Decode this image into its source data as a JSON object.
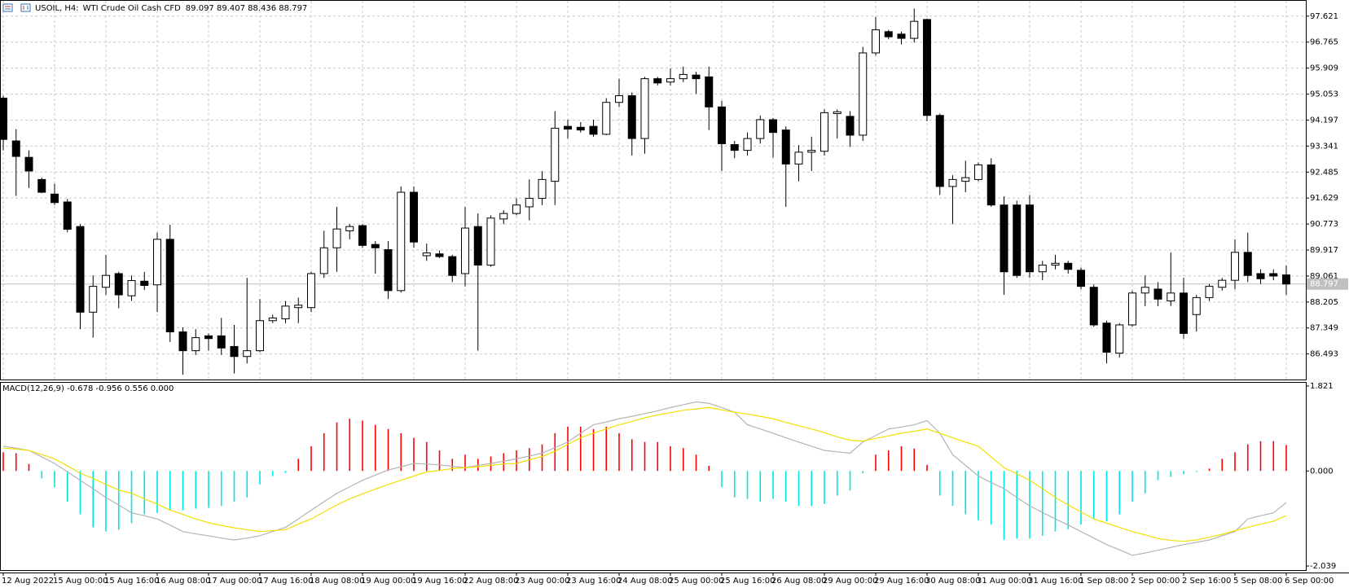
{
  "header": {
    "symbol": "USOIL, H4:",
    "description": "WTI Crude Oil Cash CFD",
    "ohlc": "89.097 89.407 88.436 88.797"
  },
  "chart_data": [
    {
      "type": "candlestick",
      "categories": [
        "12 Aug 2022",
        null,
        null,
        null,
        "15 Aug 00:00",
        null,
        null,
        null,
        "15 Aug 16:00",
        null,
        null,
        null,
        "16 Aug 08:00",
        null,
        null,
        null,
        "17 Aug 00:00",
        null,
        null,
        null,
        "17 Aug 16:00",
        null,
        null,
        null,
        "18 Aug 08:00",
        null,
        null,
        null,
        "19 Aug 00:00",
        null,
        null,
        null,
        "19 Aug 16:00",
        null,
        null,
        null,
        "22 Aug 08:00",
        null,
        null,
        null,
        "23 Aug 00:00",
        null,
        null,
        null,
        "23 Aug 16:00",
        null,
        null,
        null,
        "24 Aug 08:00",
        null,
        null,
        null,
        "25 Aug 00:00",
        null,
        null,
        null,
        "25 Aug 16:00",
        null,
        null,
        null,
        "26 Aug 08:00",
        null,
        null,
        null,
        "29 Aug 00:00",
        null,
        null,
        null,
        "29 Aug 16:00",
        null,
        null,
        null,
        "30 Aug 08:00",
        null,
        null,
        null,
        "31 Aug 00:00",
        null,
        null,
        null,
        "31 Aug 16:00",
        null,
        null,
        null,
        "1 Sep 08:00",
        null,
        null,
        null,
        "2 Sep 00:00",
        null,
        null,
        null,
        "2 Sep 16:00",
        null,
        null,
        null,
        "5 Sep 08:00",
        null,
        null,
        null,
        "6 Sep 00:00"
      ],
      "open": [
        94.92,
        93.51,
        92.97,
        92.24,
        91.76,
        91.5,
        90.69,
        87.87,
        88.69,
        89.14,
        88.41,
        88.89,
        88.77,
        90.27,
        87.22,
        86.6,
        87.09,
        87.09,
        86.74,
        86.41,
        86.6,
        87.59,
        87.65,
        88.02,
        88.02,
        89.14,
        89.99,
        90.55,
        90.72,
        90.1,
        89.93,
        88.58,
        91.82,
        89.73,
        89.79,
        89.7,
        89.14,
        90.69,
        89.42,
        90.94,
        91.12,
        91.34,
        91.62,
        92.18,
        93.99,
        93.96,
        93.99,
        93.73,
        94.78,
        95.0,
        93.59,
        95.56,
        95.45,
        95.56,
        95.68,
        95.62,
        94.63,
        93.39,
        93.2,
        93.59,
        94.21,
        93.87,
        92.75,
        93.14,
        93.17,
        94.41,
        94.32,
        93.7,
        96.41,
        97.11,
        97.03,
        96.89,
        97.51,
        94.35,
        92.01,
        92.18,
        92.24,
        92.72,
        91.4,
        91.4,
        91.4,
        89.2,
        89.42,
        89.48,
        89.25,
        88.69,
        87.51,
        86.52,
        87.45,
        88.5,
        88.63,
        88.24,
        88.5,
        87.79,
        88.35,
        88.69,
        88.92,
        89.84,
        89.14,
        89.14,
        89.097
      ],
      "high": [
        95.0,
        93.9,
        93.2,
        92.3,
        92.1,
        91.6,
        90.77,
        89.08,
        89.76,
        89.2,
        89.08,
        89.2,
        90.49,
        90.75,
        87.37,
        87.31,
        87.17,
        87.68,
        87.45,
        89.0,
        88.3,
        87.79,
        88.24,
        88.35,
        89.2,
        90.55,
        91.34,
        90.77,
        90.77,
        90.21,
        90.21,
        92.01,
        92.01,
        90.13,
        89.9,
        89.76,
        91.34,
        91.12,
        91.06,
        91.23,
        91.62,
        92.24,
        92.52,
        94.49,
        94.21,
        94.13,
        94.21,
        94.92,
        95.56,
        95.11,
        95.62,
        95.62,
        95.9,
        95.96,
        95.79,
        95.96,
        94.83,
        93.51,
        93.79,
        94.35,
        94.27,
        93.99,
        93.37,
        93.65,
        94.55,
        94.55,
        94.49,
        96.61,
        97.59,
        97.17,
        97.11,
        97.87,
        97.54,
        94.41,
        92.38,
        92.86,
        92.8,
        92.94,
        91.68,
        91.54,
        91.73,
        89.56,
        89.76,
        89.56,
        89.34,
        88.78,
        87.59,
        87.51,
        88.58,
        89.08,
        88.86,
        89.84,
        89.0,
        88.44,
        88.8,
        89.0,
        90.27,
        90.49,
        89.28,
        89.28,
        89.407
      ],
      "low": [
        93.2,
        91.7,
        91.96,
        91.79,
        91.4,
        90.5,
        87.31,
        87.03,
        88.44,
        88.0,
        88.24,
        88.6,
        87.87,
        86.89,
        85.81,
        86.46,
        86.6,
        86.46,
        85.85,
        86.18,
        86.55,
        87.51,
        87.51,
        87.51,
        87.87,
        89.0,
        89.2,
        90.27,
        89.99,
        89.14,
        88.3,
        88.52,
        89.99,
        89.56,
        89.65,
        88.86,
        88.72,
        86.6,
        89.37,
        90.77,
        91.06,
        90.89,
        91.4,
        91.4,
        93.59,
        93.79,
        93.65,
        93.7,
        94.63,
        93.03,
        93.09,
        95.34,
        95.34,
        95.45,
        95.06,
        93.87,
        92.52,
        92.94,
        93.03,
        93.42,
        92.96,
        91.34,
        92.18,
        92.52,
        93.03,
        93.59,
        93.31,
        93.51,
        96.32,
        96.86,
        96.69,
        96.75,
        94.16,
        91.73,
        90.77,
        91.82,
        92.18,
        91.34,
        88.44,
        89.0,
        89.0,
        88.92,
        89.28,
        89.14,
        88.63,
        87.39,
        86.18,
        86.38,
        87.39,
        88.07,
        88.07,
        88.07,
        87.0,
        87.23,
        88.24,
        88.58,
        88.63,
        88.86,
        88.8,
        88.92,
        88.436
      ],
      "close": [
        93.56,
        93.0,
        92.52,
        91.82,
        91.48,
        90.6,
        87.87,
        88.72,
        89.08,
        88.44,
        88.91,
        88.75,
        90.27,
        87.22,
        86.6,
        87.03,
        87.0,
        86.69,
        86.41,
        86.6,
        87.59,
        87.68,
        88.07,
        88.1,
        89.14,
        89.99,
        90.61,
        90.69,
        90.07,
        89.99,
        88.58,
        91.82,
        90.18,
        89.82,
        89.7,
        89.08,
        90.64,
        89.42,
        90.97,
        91.12,
        91.4,
        91.62,
        92.24,
        93.93,
        93.9,
        93.87,
        93.73,
        94.78,
        95.0,
        93.59,
        95.56,
        95.42,
        95.56,
        95.7,
        95.56,
        94.63,
        93.42,
        93.2,
        93.59,
        94.21,
        93.79,
        92.75,
        93.14,
        93.2,
        94.44,
        94.47,
        93.7,
        96.41,
        97.17,
        96.94,
        96.89,
        97.45,
        94.35,
        92.01,
        92.24,
        92.3,
        92.72,
        91.4,
        89.2,
        89.08,
        89.2,
        89.42,
        89.48,
        89.28,
        88.72,
        87.45,
        86.55,
        87.45,
        88.5,
        88.69,
        88.3,
        88.5,
        87.17,
        88.35,
        88.72,
        88.92,
        89.84,
        89.08,
        88.97,
        89.06,
        88.797
      ],
      "up_color": "#ffffff",
      "down_color": "#000000",
      "outline_color": "#000000",
      "ylim": [
        85.732,
        98.072
      ],
      "yticks": [
        97.621,
        96.765,
        95.909,
        95.053,
        94.197,
        93.341,
        92.485,
        91.629,
        90.773,
        89.917,
        89.061,
        88.205,
        87.349,
        86.493
      ],
      "price_line": 88.797,
      "price_line_color": "#c0c0c0",
      "grid": true,
      "grid_color": "#c8c8c8"
    },
    {
      "type": "macd",
      "label": "MACD(12,26,9) -0.678 -0.956 0.556 0.000",
      "histogram": [
        0.4,
        0.38,
        0.15,
        -0.16,
        -0.35,
        -0.66,
        -0.93,
        -1.21,
        -1.3,
        -1.26,
        -1.12,
        -0.93,
        -0.9,
        -0.84,
        -0.84,
        -0.81,
        -0.79,
        -0.75,
        -0.66,
        -0.57,
        -0.29,
        -0.11,
        -0.04,
        0.26,
        0.53,
        0.81,
        1.04,
        1.12,
        1.08,
        0.99,
        0.9,
        0.81,
        0.71,
        0.62,
        0.44,
        0.26,
        0.35,
        0.26,
        0.31,
        0.38,
        0.44,
        0.49,
        0.57,
        0.81,
        0.95,
        0.95,
        0.9,
        0.95,
        0.81,
        0.68,
        0.62,
        0.62,
        0.53,
        0.49,
        0.35,
        0.11,
        -0.35,
        -0.57,
        -0.6,
        -0.66,
        -0.6,
        -0.66,
        -0.75,
        -0.75,
        -0.71,
        -0.53,
        -0.42,
        -0.05,
        0.35,
        0.44,
        0.53,
        0.48,
        0.13,
        -0.53,
        -0.75,
        -0.93,
        -1.06,
        -1.15,
        -1.48,
        -1.45,
        -1.45,
        -1.39,
        -1.3,
        -1.25,
        -1.15,
        -1.03,
        -1.08,
        -0.93,
        -0.66,
        -0.48,
        -0.2,
        -0.13,
        -0.07,
        -0.02,
        0.05,
        0.26,
        0.4,
        0.57,
        0.64,
        0.64,
        0.556
      ],
      "positive_color": "#ff0000",
      "negative_color": "#00e5e5",
      "series": [
        {
          "color": "#b4b4b4",
          "values": [
            0.53,
            0.49,
            0.44,
            0.3,
            0.16,
            -0.02,
            -0.2,
            -0.38,
            -0.57,
            -0.73,
            -0.9,
            -0.96,
            -1.03,
            -1.16,
            -1.3,
            -1.35,
            -1.39,
            -1.44,
            -1.48,
            -1.44,
            -1.39,
            -1.3,
            -1.21,
            -1.03,
            -0.84,
            -0.66,
            -0.48,
            -0.34,
            -0.2,
            -0.09,
            0.02,
            0.09,
            0.16,
            0.15,
            0.13,
            0.1,
            0.07,
            0.12,
            0.16,
            0.21,
            0.26,
            0.32,
            0.38,
            0.5,
            0.62,
            0.81,
            0.99,
            1.05,
            1.12,
            1.17,
            1.23,
            1.29,
            1.36,
            1.42,
            1.48,
            1.45,
            1.36,
            1.26,
            0.99,
            0.9,
            0.81,
            0.71,
            0.62,
            0.53,
            0.44,
            0.41,
            0.38,
            0.62,
            0.76,
            0.9,
            0.94,
            0.99,
            1.08,
            0.81,
            0.35,
            0.12,
            -0.11,
            -0.25,
            -0.38,
            -0.57,
            -0.75,
            -0.89,
            -1.03,
            -1.16,
            -1.3,
            -1.44,
            -1.58,
            -1.69,
            -1.81,
            -1.76,
            -1.7,
            -1.64,
            -1.58,
            -1.53,
            -1.48,
            -1.39,
            -1.3,
            -1.03,
            -0.96,
            -0.9,
            -0.678
          ]
        },
        {
          "color": "#f0e000",
          "values": [
            0.49,
            0.47,
            0.44,
            0.35,
            0.26,
            0.11,
            -0.05,
            -0.16,
            -0.29,
            -0.41,
            -0.48,
            -0.6,
            -0.71,
            -0.84,
            -0.93,
            -1.03,
            -1.11,
            -1.17,
            -1.22,
            -1.26,
            -1.3,
            -1.28,
            -1.26,
            -1.14,
            -1.03,
            -0.88,
            -0.73,
            -0.6,
            -0.49,
            -0.39,
            -0.29,
            -0.2,
            -0.11,
            -0.02,
            0.01,
            0.05,
            0.07,
            0.09,
            0.12,
            0.15,
            0.16,
            0.24,
            0.31,
            0.42,
            0.57,
            0.71,
            0.81,
            0.9,
            0.99,
            1.06,
            1.14,
            1.2,
            1.25,
            1.3,
            1.33,
            1.36,
            1.31,
            1.26,
            1.22,
            1.17,
            1.12,
            1.04,
            0.97,
            0.9,
            0.82,
            0.73,
            0.66,
            0.64,
            0.7,
            0.75,
            0.81,
            0.85,
            0.9,
            0.81,
            0.71,
            0.62,
            0.53,
            0.3,
            0.07,
            -0.06,
            -0.2,
            -0.38,
            -0.57,
            -0.73,
            -0.88,
            -1.03,
            -1.12,
            -1.21,
            -1.3,
            -1.37,
            -1.45,
            -1.49,
            -1.51,
            -1.48,
            -1.42,
            -1.36,
            -1.28,
            -1.21,
            -1.14,
            -1.08,
            -0.956
          ]
        }
      ],
      "ylim": [
        -2.039,
        1.821
      ],
      "yticks": [
        1.821,
        {
          "value": 0,
          "label": "0.000"
        },
        -2.039
      ]
    }
  ]
}
